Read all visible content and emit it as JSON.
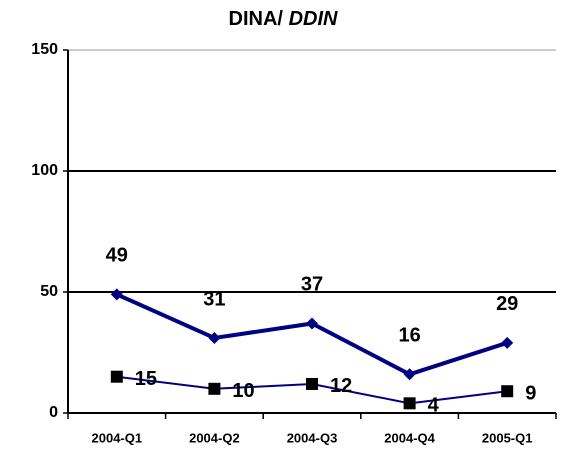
{
  "chart_data": {
    "type": "line",
    "title": [
      "DINA/",
      "DDIN"
    ],
    "categories": [
      "2004-Q1",
      "2004-Q2",
      "2004-Q3",
      "2004-Q4",
      "2005-Q1"
    ],
    "series": [
      {
        "color": "#000080",
        "marker": "diamond",
        "values": [
          49,
          31,
          37,
          16,
          29
        ]
      },
      {
        "color": "#000080",
        "marker_color": "#000000",
        "marker": "square",
        "values": [
          15,
          10,
          12,
          4,
          9
        ]
      }
    ],
    "ylim": [
      0,
      150
    ],
    "yticks": [
      0,
      50,
      100,
      150
    ],
    "grid": true
  }
}
